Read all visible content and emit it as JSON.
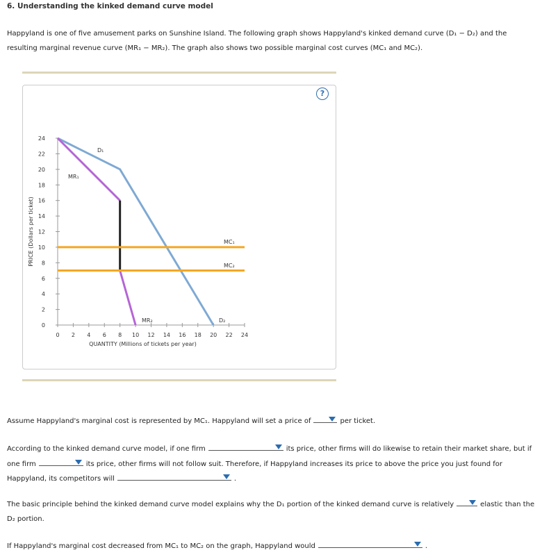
{
  "header": {
    "title": "6. Understanding the kinked demand curve model"
  },
  "intro": "Happyland is one of five amusement parks on Sunshine Island. The following graph shows Happyland's kinked demand curve (D₁ − D₂) and the resulting marginal revenue curve (MR₁ − MR₂). The graph also shows two possible marginal cost curves (MC₁ and MC₂).",
  "help": "?",
  "chart_data": {
    "type": "line",
    "xlabel": "QUANTITY (Millions of tickets per year)",
    "ylabel": "PRICE (Dollars per ticket)",
    "xlim": [
      0,
      24
    ],
    "ylim": [
      0,
      24
    ],
    "xticks": [
      0,
      2,
      4,
      6,
      8,
      10,
      12,
      14,
      16,
      18,
      20,
      22,
      24
    ],
    "yticks": [
      0,
      2,
      4,
      6,
      8,
      10,
      12,
      14,
      16,
      18,
      20,
      22,
      24
    ],
    "series": [
      {
        "color": "#7fa9d4",
        "x": [
          0,
          8,
          20
        ],
        "values": [
          24,
          20,
          0
        ]
      },
      {
        "color": "#b565d6",
        "x": [
          0,
          8
        ],
        "values": [
          24,
          16
        ]
      },
      {
        "color": "#222222",
        "x": [
          8,
          8
        ],
        "values": [
          16,
          7
        ]
      },
      {
        "color": "#b565d6",
        "x": [
          8,
          10
        ],
        "values": [
          7,
          0
        ]
      },
      {
        "color": "#f5a623",
        "x": [
          0,
          24
        ],
        "values": [
          10,
          10
        ]
      },
      {
        "color": "#f5a623",
        "x": [
          0,
          24
        ],
        "values": [
          7,
          7
        ]
      }
    ],
    "line_labels": [
      "D₁",
      "MR₁",
      "MC₁",
      "MC₂",
      "MR₂",
      "D₂"
    ]
  },
  "questions": [
    [
      "Assume Happyland's marginal cost is represented by MC₁. Happyland will set a price of",
      "per ticket."
    ],
    [
      "According to the kinked demand curve model, if one firm",
      "its price, other firms will do likewise to retain their market share, but if one firm",
      "its price, other firms will not follow suit. Therefore, if Happyland increases its price to above the price you just found for Happyland, its competitors will",
      "."
    ],
    [
      "The basic principle behind the kinked demand curve model explains why the D₁ portion of the kinked demand curve is relatively",
      "elastic than the D₂ portion."
    ],
    [
      "If Happyland's marginal cost decreased from MC₁ to MC₂ on the graph, Happyland would",
      "."
    ]
  ]
}
